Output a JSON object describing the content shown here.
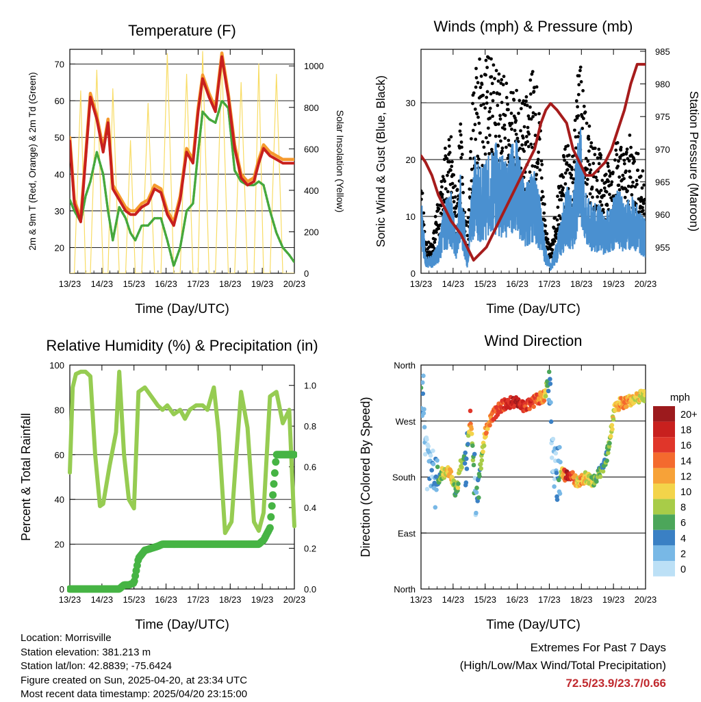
{
  "colors": {
    "temp_red": "#c8201e",
    "temp_orange": "#f59a2e",
    "dewpoint_green": "#46a83c",
    "solar_yellow": "#f8dc64",
    "wind_blue": "#4a90d0",
    "gust_black": "#000000",
    "pressure_maroon": "#a61c1c",
    "rh_green": "#96cc52",
    "precip_green": "#46b444",
    "extremes_red": "#c0282d"
  },
  "x_tick_labels": [
    "13/23",
    "14/23",
    "15/23",
    "16/23",
    "17/23",
    "18/23",
    "19/23",
    "20/23"
  ],
  "chart_data": [
    {
      "id": "temperature",
      "type": "line",
      "title": "Temperature (F)",
      "xlabel": "Time (Day/UTC)",
      "ylabel": "2m & 9m T (Red, Orange) & 2m Td (Green)",
      "y2label": "Solar Insolation (Yellow)",
      "xlim": [
        13.96,
        20.96
      ],
      "ylim": [
        13,
        74
      ],
      "y2lim": [
        0,
        1080
      ],
      "yticks": [
        20,
        30,
        40,
        50,
        60,
        70
      ],
      "y2ticks": [
        0,
        200,
        400,
        600,
        800,
        1000
      ],
      "x": [
        13.96,
        14.1,
        14.3,
        14.45,
        14.6,
        14.8,
        15.0,
        15.15,
        15.3,
        15.5,
        15.7,
        15.85,
        16.0,
        16.2,
        16.4,
        16.6,
        16.8,
        17.0,
        17.2,
        17.4,
        17.6,
        17.8,
        17.96,
        18.1,
        18.3,
        18.5,
        18.7,
        18.9,
        19.1,
        19.3,
        19.5,
        19.7,
        19.85,
        20.0,
        20.2,
        20.4,
        20.6,
        20.8,
        20.96
      ],
      "series": [
        {
          "id": "t9m",
          "values": [
            50,
            33,
            28,
            45,
            62,
            56,
            47,
            55,
            37,
            34,
            31,
            30,
            30,
            32,
            33,
            37,
            36,
            30,
            27,
            34,
            47,
            44,
            58,
            67,
            62,
            58,
            73,
            62,
            48,
            40,
            38,
            39,
            44,
            48,
            46,
            45,
            44,
            44,
            44
          ]
        },
        {
          "id": "t2m",
          "values": [
            49,
            32,
            27,
            44,
            61,
            55,
            46,
            54,
            36,
            33,
            30,
            29,
            29,
            31,
            32,
            36,
            35,
            29,
            26,
            33,
            46,
            43,
            57,
            66,
            61,
            57,
            72,
            61,
            47,
            39,
            37,
            38,
            43,
            47,
            45,
            44,
            43,
            43,
            43
          ]
        },
        {
          "id": "td",
          "values": [
            33,
            30,
            27,
            34,
            38,
            46,
            40,
            30,
            22,
            31,
            28,
            24,
            22,
            26,
            26,
            28,
            28,
            22,
            15,
            20,
            30,
            32,
            46,
            57,
            55,
            54,
            60,
            58,
            41,
            38,
            37,
            37,
            38,
            37,
            30,
            24,
            20,
            18,
            16
          ]
        },
        {
          "id": "solar",
          "axis": "y2",
          "values": [
            0,
            0,
            880,
            0,
            0,
            980,
            0,
            0,
            890,
            0,
            0,
            640,
            0,
            0,
            820,
            0,
            0,
            1060,
            0,
            0,
            960,
            0,
            0,
            1070,
            0,
            0,
            1040,
            0,
            0,
            920,
            0,
            0,
            1010,
            0,
            0,
            960,
            0,
            0,
            0
          ]
        }
      ]
    },
    {
      "id": "winds",
      "type": "scatter",
      "title": "Winds (mph) & Pressure (mb)",
      "xlabel": "Time (Day/UTC)",
      "ylabel": "Sonic Wind & Gust (Blue, Black)",
      "y2label": "Station Pressure (Maroon)",
      "xlim": [
        13.96,
        20.96
      ],
      "ylim": [
        0,
        39.4
      ],
      "y2lim": [
        951.0,
        985.3
      ],
      "yticks": [
        0,
        10,
        20,
        30
      ],
      "y2ticks": [
        955,
        960,
        965,
        970,
        975,
        980,
        985
      ],
      "x": [
        13.96,
        14.1,
        14.3,
        14.5,
        14.7,
        14.9,
        15.05,
        15.2,
        15.4,
        15.6,
        15.8,
        16.0,
        16.3,
        16.6,
        16.9,
        17.2,
        17.5,
        17.7,
        17.85,
        18.0,
        18.2,
        18.5,
        18.7,
        18.9,
        19.1,
        19.3,
        19.5,
        19.7,
        19.9,
        20.1,
        20.3,
        20.5,
        20.7,
        20.96
      ],
      "series": [
        {
          "id": "wind",
          "values": [
            10,
            2,
            2,
            4,
            8,
            10,
            4,
            12,
            2,
            14,
            12,
            13,
            15,
            13,
            16,
            10,
            12,
            8,
            3,
            1,
            4,
            10,
            9,
            18,
            9,
            8,
            8,
            7,
            8,
            10,
            8,
            9,
            8,
            6
          ]
        },
        {
          "id": "gust",
          "values": [
            14,
            4,
            4,
            10,
            16,
            18,
            10,
            20,
            4,
            26,
            28,
            30,
            26,
            25,
            24,
            22,
            28,
            18,
            6,
            3,
            10,
            18,
            16,
            30,
            20,
            18,
            16,
            14,
            15,
            18,
            16,
            18,
            16,
            12
          ]
        },
        {
          "id": "pressure",
          "axis": "y2",
          "values": [
            969,
            968,
            966,
            963,
            961,
            959,
            958,
            957,
            955,
            953,
            954,
            955,
            958,
            961,
            964,
            967,
            970,
            974,
            976,
            977,
            976,
            974,
            970,
            968,
            966,
            966,
            967,
            968,
            970,
            973,
            976,
            980,
            983,
            983
          ]
        }
      ]
    },
    {
      "id": "humidity",
      "type": "line",
      "title": "Relative Humidity (%) & Precipitation (in)",
      "xlabel": "Time (Day/UTC)",
      "ylabel": "Percent & Total Rainfall",
      "xlim": [
        13.96,
        20.96
      ],
      "ylim": [
        0,
        100
      ],
      "y2lim": [
        0,
        1.1
      ],
      "yticks": [
        0,
        20,
        40,
        60,
        80,
        100
      ],
      "y2ticks": [
        0.0,
        0.2,
        0.4,
        0.6,
        0.8,
        1.0
      ],
      "y2tick_labels": [
        "0.0",
        "0.2",
        "0.4",
        "0.6",
        "0.8",
        "1.0"
      ],
      "x": [
        13.96,
        14.05,
        14.15,
        14.3,
        14.45,
        14.6,
        14.75,
        14.9,
        15.0,
        15.2,
        15.4,
        15.5,
        15.65,
        15.8,
        15.96,
        16.1,
        16.3,
        16.5,
        16.7,
        16.85,
        17.0,
        17.2,
        17.4,
        17.55,
        17.7,
        17.9,
        18.1,
        18.25,
        18.45,
        18.6,
        18.8,
        19.0,
        19.15,
        19.3,
        19.5,
        19.7,
        19.85,
        20.0,
        20.2,
        20.4,
        20.6,
        20.8,
        20.96
      ],
      "series": [
        {
          "id": "rh",
          "values": [
            52,
            90,
            96,
            97,
            97,
            95,
            60,
            37,
            38,
            55,
            70,
            97,
            60,
            40,
            36,
            88,
            90,
            86,
            82,
            80,
            82,
            78,
            80,
            76,
            80,
            82,
            82,
            80,
            90,
            70,
            25,
            30,
            60,
            88,
            72,
            30,
            26,
            34,
            86,
            88,
            74,
            80,
            28
          ]
        },
        {
          "id": "precip",
          "axis": "y2",
          "values": [
            0,
            0,
            0,
            0,
            0,
            0,
            0,
            0,
            0,
            0,
            0,
            0,
            0.02,
            0.02,
            0.03,
            0.15,
            0.19,
            0.2,
            0.21,
            0.22,
            0.22,
            0.22,
            0.22,
            0.22,
            0.22,
            0.22,
            0.22,
            0.22,
            0.22,
            0.22,
            0.22,
            0.22,
            0.22,
            0.22,
            0.22,
            0.22,
            0.22,
            0.24,
            0.3,
            0.66,
            0.66,
            0.66,
            0.66
          ]
        }
      ]
    },
    {
      "id": "direction",
      "type": "scatter",
      "title": "Wind Direction",
      "xlabel": "Time (Day/UTC)",
      "ylabel": "Direction (Colored By Speed)",
      "xlim": [
        13.96,
        20.96
      ],
      "ylim": [
        0,
        360
      ],
      "yticks": [
        0,
        90,
        180,
        270,
        360
      ],
      "ytick_labels": [
        "North",
        "East",
        "South",
        "West",
        "North"
      ],
      "x": [
        13.96,
        14.05,
        14.15,
        14.3,
        14.45,
        14.6,
        14.75,
        14.9,
        15.05,
        15.2,
        15.4,
        15.5,
        15.65,
        15.8,
        15.96,
        16.2,
        16.5,
        16.8,
        17.0,
        17.2,
        17.4,
        17.6,
        17.8,
        17.96,
        18.1,
        18.3,
        18.5,
        18.7,
        18.85,
        19.0,
        19.1,
        19.3,
        19.5,
        19.7,
        19.85,
        20.0,
        20.2,
        20.4,
        20.6,
        20.8,
        20.96
      ],
      "series": [
        {
          "id": "direction",
          "values": [
            310,
            300,
            200,
            190,
            160,
            185,
            190,
            185,
            150,
            200,
            215,
            280,
            160,
            190,
            250,
            280,
            295,
            300,
            300,
            290,
            300,
            305,
            310,
            340,
            180,
            190,
            180,
            180,
            170,
            175,
            180,
            170,
            185,
            200,
            240,
            290,
            300,
            300,
            305,
            310,
            310
          ]
        },
        {
          "id": "speed",
          "values": [
            4,
            1,
            1,
            2,
            4,
            8,
            10,
            12,
            6,
            10,
            3,
            14,
            2,
            6,
            12,
            14,
            16,
            18,
            18,
            16,
            16,
            14,
            12,
            3,
            1,
            4,
            20,
            14,
            10,
            12,
            10,
            8,
            6,
            6,
            8,
            10,
            12,
            12,
            10,
            10,
            8
          ]
        }
      ],
      "colorbar": {
        "title": "mph",
        "labels": [
          "20+",
          "18",
          "16",
          "14",
          "12",
          "10",
          "8",
          "6",
          "4",
          "2",
          "0"
        ],
        "colors": [
          "#9c1a1d",
          "#c8201e",
          "#e0362a",
          "#f46a2e",
          "#f7a238",
          "#f3d44a",
          "#a8cc48",
          "#4ca65a",
          "#3a80c4",
          "#78b8e6",
          "#bce0f6"
        ]
      }
    }
  ],
  "info": {
    "location": "Location: Morrisville",
    "elevation": "Station elevation: 381.213 m",
    "latlon": "Station lat/lon: 42.8839; -75.6424",
    "created": "Figure created on Sun, 2025-04-20, at 23:34 UTC",
    "latest": "Most recent data timestamp: 2025/04/20 23:15:00"
  },
  "extremes": {
    "line1": "Extremes For Past 7 Days",
    "line2": "(High/Low/Max Wind/Total Precipitation)",
    "values": "72.5/23.9/23.7/0.66"
  }
}
